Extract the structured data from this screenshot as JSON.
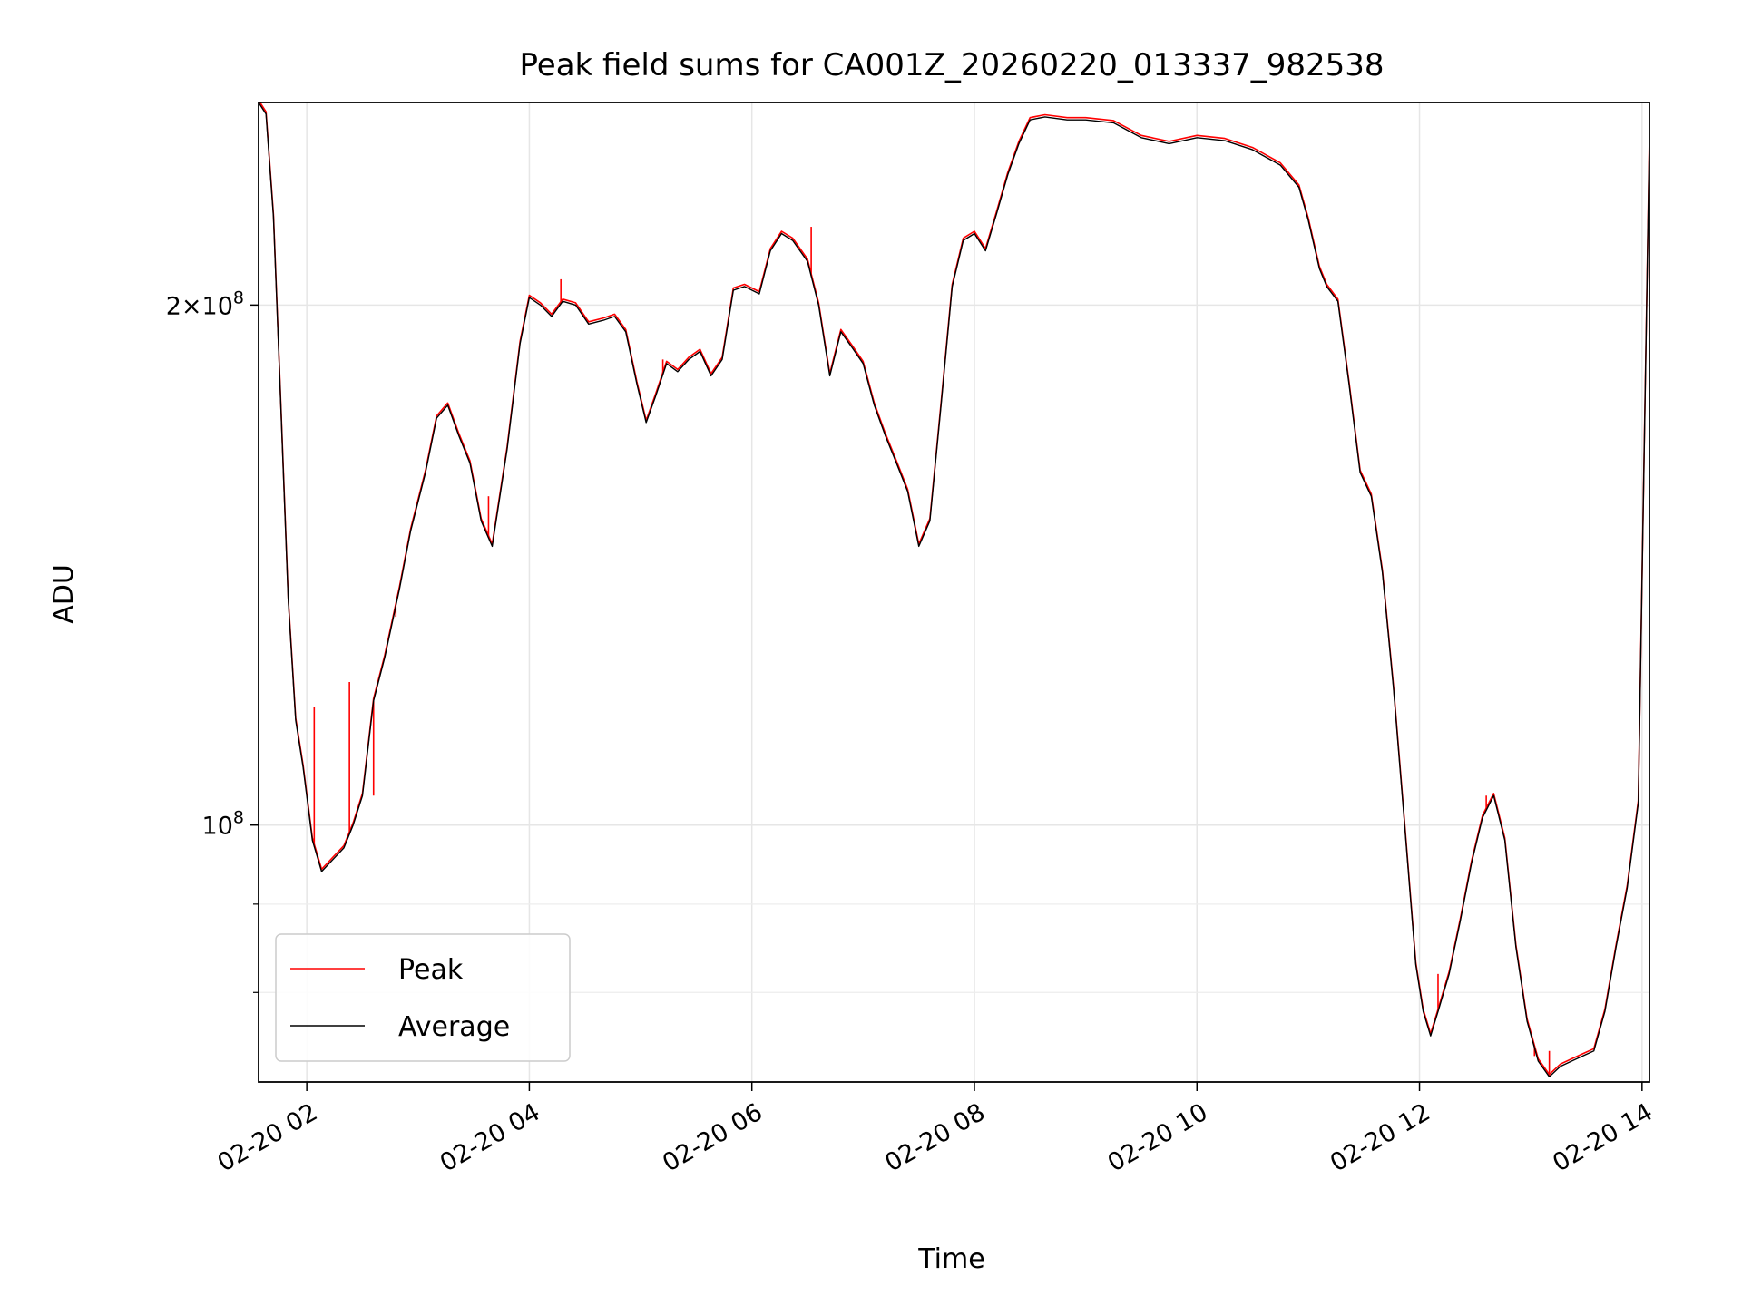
{
  "chart_data": {
    "type": "line",
    "title": "Peak field sums for CA001Z_20260220_013337_982538",
    "xlabel": "Time",
    "ylabel": "ADU",
    "yscale": "log",
    "grid": true,
    "legend_position": "lower-left",
    "x_axis": {
      "type": "datetime",
      "range": [
        "2026-02-20 01:34",
        "2026-02-20 14:04"
      ],
      "ticks": [
        "2026-02-20 02:00",
        "2026-02-20 04:00",
        "2026-02-20 06:00",
        "2026-02-20 08:00",
        "2026-02-20 10:00",
        "2026-02-20 12:00",
        "2026-02-20 14:00"
      ],
      "tick_labels": [
        "02-20 02",
        "02-20 04",
        "02-20 06",
        "02-20 08",
        "02-20 10",
        "02-20 12",
        "02-20 14"
      ]
    },
    "y_axis": {
      "range": [
        71000000,
        262000000
      ],
      "major_ticks": [
        100000000,
        200000000
      ],
      "major_tick_labels": [
        {
          "mantissa": "",
          "exponent": "8"
        },
        {
          "mantissa": "2",
          "exponent": "8"
        }
      ],
      "minor_ticks": [
        80000000,
        90000000
      ]
    },
    "series": [
      {
        "name": "Peak",
        "color": "#ff0000",
        "spikes": [
          {
            "x": "2026-02-20 02:04",
            "y": 117000000
          },
          {
            "x": "2026-02-20 02:23",
            "y": 121000000
          },
          {
            "x": "2026-02-20 02:36",
            "y": 104000000
          },
          {
            "x": "2026-02-20 02:48",
            "y": 132000000
          },
          {
            "x": "2026-02-20 03:38",
            "y": 155000000
          },
          {
            "x": "2026-02-20 04:17",
            "y": 207000000
          },
          {
            "x": "2026-02-20 05:12",
            "y": 186000000
          },
          {
            "x": "2026-02-20 06:32",
            "y": 222000000
          },
          {
            "x": "2026-02-20 12:10",
            "y": 82000000
          },
          {
            "x": "2026-02-20 12:36",
            "y": 104000000
          },
          {
            "x": "2026-02-20 13:02",
            "y": 73500000
          },
          {
            "x": "2026-02-20 13:10",
            "y": 74000000
          }
        ]
      },
      {
        "name": "Average",
        "color": "#000000",
        "x": [
          "2026-02-20 01:34",
          "2026-02-20 01:38",
          "2026-02-20 01:42",
          "2026-02-20 01:46",
          "2026-02-20 01:50",
          "2026-02-20 01:54",
          "2026-02-20 01:58",
          "2026-02-20 02:03",
          "2026-02-20 02:08",
          "2026-02-20 02:14",
          "2026-02-20 02:20",
          "2026-02-20 02:25",
          "2026-02-20 02:30",
          "2026-02-20 02:36",
          "2026-02-20 02:42",
          "2026-02-20 02:50",
          "2026-02-20 02:56",
          "2026-02-20 03:04",
          "2026-02-20 03:10",
          "2026-02-20 03:16",
          "2026-02-20 03:22",
          "2026-02-20 03:28",
          "2026-02-20 03:34",
          "2026-02-20 03:40",
          "2026-02-20 03:48",
          "2026-02-20 03:55",
          "2026-02-20 04:00",
          "2026-02-20 04:06",
          "2026-02-20 04:12",
          "2026-02-20 04:18",
          "2026-02-20 04:25",
          "2026-02-20 04:32",
          "2026-02-20 04:40",
          "2026-02-20 04:46",
          "2026-02-20 04:52",
          "2026-02-20 04:58",
          "2026-02-20 05:03",
          "2026-02-20 05:08",
          "2026-02-20 05:14",
          "2026-02-20 05:20",
          "2026-02-20 05:26",
          "2026-02-20 05:32",
          "2026-02-20 05:38",
          "2026-02-20 05:44",
          "2026-02-20 05:50",
          "2026-02-20 05:56",
          "2026-02-20 06:04",
          "2026-02-20 06:10",
          "2026-02-20 06:16",
          "2026-02-20 06:22",
          "2026-02-20 06:30",
          "2026-02-20 06:36",
          "2026-02-20 06:42",
          "2026-02-20 06:48",
          "2026-02-20 06:54",
          "2026-02-20 07:00",
          "2026-02-20 07:06",
          "2026-02-20 07:12",
          "2026-02-20 07:18",
          "2026-02-20 07:24",
          "2026-02-20 07:30",
          "2026-02-20 07:36",
          "2026-02-20 07:42",
          "2026-02-20 07:48",
          "2026-02-20 07:54",
          "2026-02-20 08:00",
          "2026-02-20 08:06",
          "2026-02-20 08:12",
          "2026-02-20 08:18",
          "2026-02-20 08:24",
          "2026-02-20 08:30",
          "2026-02-20 08:38",
          "2026-02-20 08:50",
          "2026-02-20 09:00",
          "2026-02-20 09:15",
          "2026-02-20 09:30",
          "2026-02-20 09:45",
          "2026-02-20 10:00",
          "2026-02-20 10:15",
          "2026-02-20 10:30",
          "2026-02-20 10:45",
          "2026-02-20 10:55",
          "2026-02-20 11:00",
          "2026-02-20 11:06",
          "2026-02-20 11:10",
          "2026-02-20 11:16",
          "2026-02-20 11:22",
          "2026-02-20 11:28",
          "2026-02-20 11:34",
          "2026-02-20 11:40",
          "2026-02-20 11:46",
          "2026-02-20 11:52",
          "2026-02-20 11:58",
          "2026-02-20 12:02",
          "2026-02-20 12:06",
          "2026-02-20 12:10",
          "2026-02-20 12:16",
          "2026-02-20 12:22",
          "2026-02-20 12:28",
          "2026-02-20 12:34",
          "2026-02-20 12:40",
          "2026-02-20 12:46",
          "2026-02-20 12:52",
          "2026-02-20 12:58",
          "2026-02-20 13:04",
          "2026-02-20 13:10",
          "2026-02-20 13:16",
          "2026-02-20 13:22",
          "2026-02-20 13:28",
          "2026-02-20 13:34",
          "2026-02-20 13:40",
          "2026-02-20 13:46",
          "2026-02-20 13:52",
          "2026-02-20 13:58",
          "2026-02-20 14:04"
        ],
        "values": [
          262000000,
          258000000,
          225000000,
          175000000,
          135000000,
          115000000,
          108000000,
          98000000,
          94000000,
          95500000,
          97000000,
          100000000,
          104000000,
          118000000,
          125000000,
          137000000,
          148000000,
          160000000,
          172000000,
          175000000,
          168000000,
          162000000,
          150000000,
          145000000,
          165000000,
          190000000,
          202000000,
          200000000,
          197000000,
          201000000,
          200000000,
          195000000,
          196000000,
          197000000,
          193000000,
          180000000,
          171000000,
          177000000,
          185000000,
          183000000,
          186000000,
          188000000,
          182000000,
          186000000,
          204000000,
          205000000,
          203000000,
          215000000,
          220000000,
          218000000,
          212000000,
          200000000,
          182000000,
          193000000,
          189000000,
          185000000,
          175000000,
          168000000,
          162000000,
          156000000,
          145000000,
          150000000,
          175000000,
          205000000,
          218000000,
          220000000,
          215000000,
          226000000,
          238000000,
          248000000,
          256000000,
          257000000,
          256000000,
          256000000,
          255000000,
          250000000,
          248000000,
          250000000,
          249000000,
          246000000,
          241000000,
          234000000,
          224000000,
          210000000,
          205000000,
          201000000,
          180000000,
          160000000,
          155000000,
          140000000,
          120000000,
          100000000,
          83000000,
          78000000,
          75500000,
          78000000,
          82000000,
          88000000,
          95000000,
          101000000,
          104000000,
          98000000,
          85000000,
          77000000,
          73000000,
          71500000,
          72500000,
          73000000,
          73500000,
          74000000,
          78000000,
          85000000,
          92000000,
          103000000,
          250000000
        ]
      }
    ]
  }
}
